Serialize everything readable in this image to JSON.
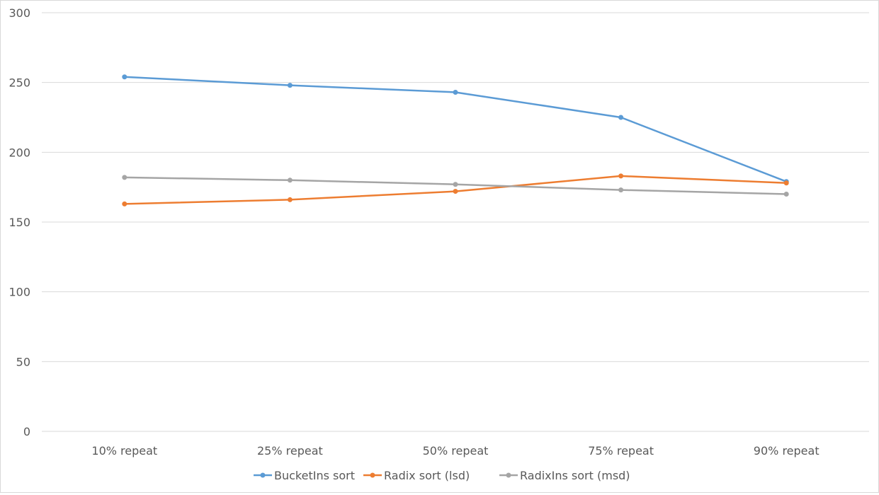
{
  "chart_data": {
    "type": "line",
    "title": "",
    "xlabel": "",
    "ylabel": "",
    "categories": [
      "10% repeat",
      "25% repeat",
      "50% repeat",
      "75% repeat",
      "90% repeat"
    ],
    "ylim": [
      0,
      300
    ],
    "yticks": [
      0,
      50,
      100,
      150,
      200,
      250,
      300
    ],
    "grid": true,
    "legend_position": "bottom",
    "series": [
      {
        "name": "BucketIns sort",
        "color": "#5b9bd5",
        "values": [
          254,
          248,
          243,
          225,
          179
        ]
      },
      {
        "name": "Radix sort (lsd)",
        "color": "#ed7d31",
        "values": [
          163,
          166,
          172,
          183,
          178
        ]
      },
      {
        "name": "RadixIns sort (msd)",
        "color": "#a5a5a5",
        "values": [
          182,
          180,
          177,
          173,
          170
        ]
      }
    ]
  }
}
